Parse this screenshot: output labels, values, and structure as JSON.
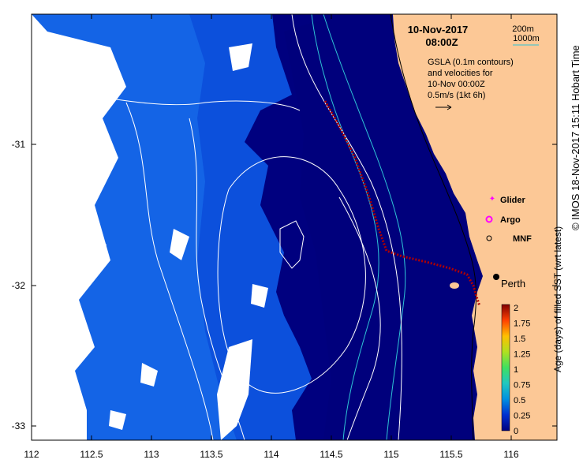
{
  "header": {
    "date": "10-Nov-2017",
    "time": "08:00Z"
  },
  "contour_key": {
    "depth_a": "200m",
    "depth_b": "1000m",
    "color_a": "#000000",
    "color_b": "#2ec4d6"
  },
  "gsla_note": {
    "line1": "GSLA (0.1m contours)",
    "line2": "and velocities for",
    "line3": "10-Nov 00:00Z",
    "line4": "0.5m/s (1kt 6h)"
  },
  "legend": {
    "glider": "Glider",
    "argo": "Argo",
    "mnf": "MNF",
    "glider_color": "#ff00ff",
    "argo_color": "#ff00ff"
  },
  "place": {
    "city": "Perth"
  },
  "axes": {
    "x_ticks": [
      "112",
      "112.5",
      "113",
      "113.5",
      "114",
      "114.5",
      "115",
      "115.5",
      "116"
    ],
    "y_ticks": [
      "-31",
      "-32",
      "-33"
    ]
  },
  "colorbar": {
    "label": "Age (days) of filled SST (wrt latest)",
    "ticks": [
      "2",
      "1.75",
      "1.5",
      "1.25",
      "1",
      "0.75",
      "0.5",
      "0.25",
      "0"
    ]
  },
  "credit": "© IMOS 18-Nov-2017 15:11 Hobart Time",
  "colors": {
    "land": "#fcc896",
    "ocean_deep": "#00007f",
    "ocean_mid": "#0038c8",
    "ocean_light": "#1464e6",
    "glider_track": "#b00000"
  }
}
